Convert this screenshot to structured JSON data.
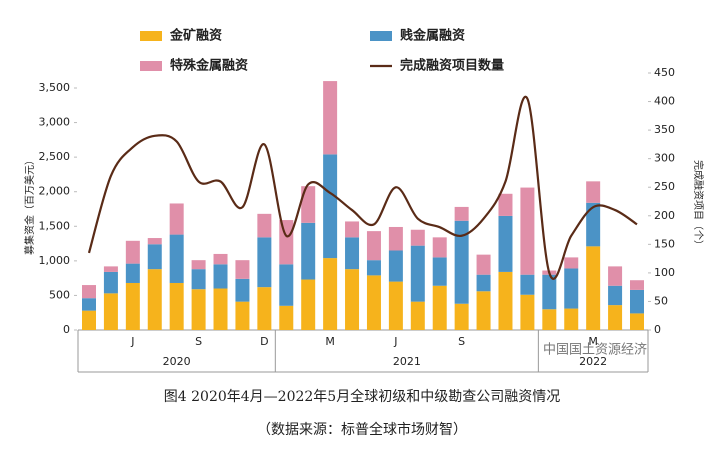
{
  "chart_data": {
    "type": "bar",
    "stacked": true,
    "categories": [
      null,
      null,
      "J",
      null,
      null,
      "S",
      null,
      null,
      "D",
      null,
      null,
      "M",
      null,
      null,
      "J",
      null,
      null,
      "S",
      null,
      null,
      null,
      null,
      null,
      "M",
      null,
      null
    ],
    "groups": [
      {
        "label": "2020",
        "count": 9
      },
      {
        "label": "2021",
        "count": 12
      },
      {
        "label": "2022",
        "count": 5
      }
    ],
    "series": [
      {
        "name": "金矿融资",
        "color": "#f6b31c",
        "type": "bar",
        "values": [
          280,
          530,
          680,
          880,
          680,
          590,
          600,
          410,
          620,
          350,
          730,
          1040,
          880,
          790,
          700,
          410,
          640,
          380,
          560,
          840,
          510,
          300,
          310,
          1210,
          360,
          240
        ]
      },
      {
        "name": "贱金属融资",
        "color": "#4b93c6",
        "type": "bar",
        "values": [
          180,
          310,
          280,
          360,
          700,
          290,
          350,
          330,
          720,
          600,
          820,
          1500,
          460,
          220,
          450,
          810,
          410,
          1200,
          240,
          810,
          290,
          500,
          580,
          630,
          280,
          340
        ]
      },
      {
        "name": "特殊金属融资",
        "color": "#e08fa9",
        "type": "bar",
        "values": [
          190,
          80,
          330,
          90,
          450,
          130,
          150,
          270,
          340,
          640,
          530,
          1060,
          230,
          420,
          340,
          230,
          290,
          200,
          290,
          320,
          1260,
          60,
          160,
          310,
          280,
          140
        ]
      },
      {
        "name": "完成融资项目数量",
        "color": "#5a2b17",
        "type": "line",
        "axis": "y2",
        "values": [
          135,
          270,
          320,
          340,
          330,
          260,
          260,
          215,
          325,
          165,
          255,
          240,
          210,
          185,
          250,
          195,
          180,
          165,
          195,
          260,
          405,
          100,
          165,
          215,
          210,
          185
        ]
      }
    ],
    "ylabel": "募集资金（百万美元）",
    "y2label": "完成融资项目（个）",
    "ylim": [
      0,
      3500
    ],
    "yticks": [
      0,
      500,
      {
        "value": 1000,
        "label": "1,000"
      },
      {
        "value": 1500,
        "label": "1,500"
      },
      {
        "value": 2000,
        "label": "2,000"
      },
      {
        "value": 2500,
        "label": "2,500"
      },
      {
        "value": 3000,
        "label": "3,000"
      },
      {
        "value": 3500,
        "label": "3,500"
      }
    ],
    "y2lim": [
      0,
      450
    ],
    "y2ticks": [
      0,
      50,
      100,
      150,
      200,
      250,
      300,
      350,
      400,
      450
    ],
    "caption": "图4  2020年4月—2022年5月全球初级和中级勘查公司融资情况",
    "source": "（数据来源：标普全球市场财智）",
    "watermark": "中国国土资源经济"
  }
}
